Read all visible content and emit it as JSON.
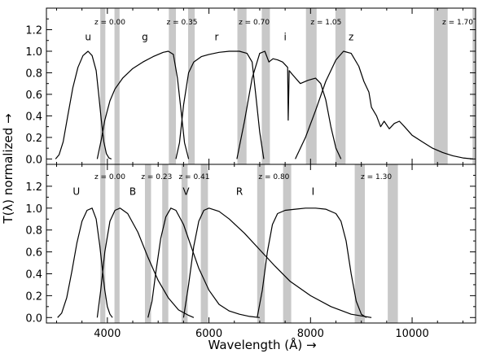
{
  "chart_data": {
    "type": "line",
    "xlabel": "Wavelength (Å) →",
    "ylabel": "T(λ) normalized →",
    "xlim": [
      2800,
      11250
    ],
    "x_ticks": [
      4000,
      6000,
      8000,
      10000
    ],
    "x_tick_labels": [
      "4000",
      "6000",
      "8000",
      "10000"
    ],
    "ylim": [
      -0.05,
      1.4
    ],
    "y_ticks": [
      0.0,
      0.2,
      0.4,
      0.6,
      0.8,
      1.0,
      1.2
    ],
    "y_tick_labels": [
      "0.0",
      "0.2",
      "0.4",
      "0.6",
      "0.8",
      "1.0",
      "1.2"
    ],
    "grid": false,
    "panels": [
      {
        "position": "top",
        "series": [
          {
            "name": "u",
            "label_at": [
              3620,
              1.1
            ],
            "x": [
              2980,
              3050,
              3130,
              3220,
              3320,
              3420,
              3520,
              3620,
              3700,
              3780,
              3830,
              3880,
              3930,
              3980,
              4030,
              4080
            ],
            "y": [
              0.0,
              0.04,
              0.16,
              0.4,
              0.66,
              0.85,
              0.96,
              1.0,
              0.96,
              0.82,
              0.6,
              0.36,
              0.16,
              0.05,
              0.01,
              0.0
            ]
          },
          {
            "name": "g",
            "label_at": [
              4740,
              1.1
            ],
            "x": [
              3800,
              3880,
              3950,
              4050,
              4150,
              4300,
              4500,
              4700,
              4900,
              5100,
              5200,
              5300,
              5380,
              5450,
              5520,
              5600
            ],
            "y": [
              0.0,
              0.18,
              0.36,
              0.54,
              0.65,
              0.75,
              0.84,
              0.9,
              0.95,
              0.99,
              1.0,
              0.97,
              0.75,
              0.45,
              0.15,
              0.0
            ]
          },
          {
            "name": "r",
            "label_at": [
              6150,
              1.1
            ],
            "x": [
              5350,
              5420,
              5500,
              5600,
              5700,
              5850,
              6000,
              6200,
              6400,
              6600,
              6750,
              6850,
              6920,
              7000,
              7080
            ],
            "y": [
              0.0,
              0.15,
              0.5,
              0.8,
              0.9,
              0.95,
              0.97,
              0.99,
              1.0,
              1.0,
              0.98,
              0.9,
              0.6,
              0.25,
              0.0
            ]
          },
          {
            "name": "i",
            "label_at": [
              7500,
              1.1
            ],
            "x": [
              6550,
              6700,
              6850,
              7000,
              7100,
              7180,
              7260,
              7350,
              7450,
              7550,
              7560,
              7580,
              7650,
              7800,
              7950,
              8100,
              8200,
              8300,
              8400,
              8500,
              8600
            ],
            "y": [
              0.0,
              0.35,
              0.75,
              0.98,
              1.0,
              0.9,
              0.93,
              0.92,
              0.9,
              0.85,
              0.36,
              0.82,
              0.78,
              0.7,
              0.73,
              0.75,
              0.7,
              0.55,
              0.3,
              0.1,
              0.0
            ]
          },
          {
            "name": "z",
            "label_at": [
              8800,
              1.1
            ],
            "x": [
              7700,
              7900,
              8100,
              8300,
              8500,
              8650,
              8800,
              8950,
              9050,
              9150,
              9200,
              9300,
              9380,
              9450,
              9550,
              9650,
              9750,
              9850,
              10000,
              10200,
              10400,
              10600,
              10800,
              11000,
              11200
            ],
            "y": [
              0.0,
              0.2,
              0.45,
              0.72,
              0.92,
              1.0,
              0.98,
              0.86,
              0.72,
              0.62,
              0.48,
              0.4,
              0.3,
              0.35,
              0.28,
              0.33,
              0.35,
              0.3,
              0.22,
              0.16,
              0.1,
              0.06,
              0.03,
              0.01,
              0.0
            ]
          }
        ],
        "bands": [
          {
            "z_label": "z = 0.00",
            "ranges": [
              [
                3860,
                3960
              ],
              [
                4140,
                4240
              ]
            ]
          },
          {
            "z_label": "z = 0.35",
            "ranges": [
              [
                5210,
                5350
              ],
              [
                5590,
                5720
              ]
            ]
          },
          {
            "z_label": "z = 0.70",
            "ranges": [
              [
                6560,
                6740
              ],
              [
                7040,
                7200
              ]
            ]
          },
          {
            "z_label": "z = 1.05",
            "ranges": [
              [
                7910,
                8120
              ],
              [
                8490,
                8690
              ]
            ]
          },
          {
            "z_label": "z = 1.70",
            "ranges": [
              [
                10430,
                10700
              ],
              [
                11190,
                11260
              ]
            ]
          }
        ]
      },
      {
        "position": "bottom",
        "series": [
          {
            "name": "U",
            "label_at": [
              3390,
              1.12
            ],
            "x": [
              3020,
              3100,
              3200,
              3300,
              3400,
              3500,
              3600,
              3700,
              3780,
              3850,
              3900,
              3950,
              4000,
              4050,
              4100
            ],
            "y": [
              0.0,
              0.04,
              0.18,
              0.42,
              0.68,
              0.88,
              0.98,
              1.0,
              0.9,
              0.66,
              0.45,
              0.25,
              0.1,
              0.03,
              0.0
            ]
          },
          {
            "name": "B",
            "label_at": [
              4500,
              1.12
            ],
            "x": [
              3800,
              3870,
              3950,
              4050,
              4150,
              4250,
              4400,
              4600,
              4800,
              5000,
              5200,
              5400,
              5600,
              5700
            ],
            "y": [
              0.0,
              0.25,
              0.6,
              0.88,
              0.98,
              1.0,
              0.95,
              0.78,
              0.55,
              0.34,
              0.18,
              0.07,
              0.02,
              0.0
            ]
          },
          {
            "name": "V",
            "label_at": [
              5550,
              1.12
            ],
            "x": [
              4800,
              4880,
              4950,
              5050,
              5150,
              5250,
              5350,
              5500,
              5650,
              5800,
              6000,
              6200,
              6400,
              6600,
              6800,
              7000
            ],
            "y": [
              0.0,
              0.15,
              0.4,
              0.72,
              0.92,
              1.0,
              0.98,
              0.85,
              0.65,
              0.45,
              0.25,
              0.12,
              0.06,
              0.03,
              0.01,
              0.0
            ]
          },
          {
            "name": "R",
            "label_at": [
              6600,
              1.12
            ],
            "x": [
              5500,
              5600,
              5700,
              5800,
              5900,
              6000,
              6200,
              6400,
              6700,
              7000,
              7300,
              7600,
              8000,
              8400,
              8800,
              9200
            ],
            "y": [
              0.0,
              0.3,
              0.65,
              0.88,
              0.98,
              1.0,
              0.97,
              0.9,
              0.77,
              0.62,
              0.47,
              0.33,
              0.2,
              0.1,
              0.03,
              0.0
            ]
          },
          {
            "name": "I",
            "label_at": [
              8050,
              1.12
            ],
            "x": [
              6950,
              7050,
              7150,
              7250,
              7350,
              7500,
              7700,
              7900,
              8100,
              8300,
              8500,
              8600,
              8700,
              8800,
              8900,
              9000,
              9100
            ],
            "y": [
              0.0,
              0.25,
              0.6,
              0.85,
              0.95,
              0.98,
              0.99,
              1.0,
              1.0,
              0.99,
              0.95,
              0.88,
              0.7,
              0.4,
              0.15,
              0.03,
              0.0
            ]
          }
        ],
        "bands": [
          {
            "z_label": "z = 0.00",
            "ranges": [
              [
                3860,
                3960
              ],
              [
                4140,
                4240
              ]
            ]
          },
          {
            "z_label": "z = 0.23",
            "ranges": [
              [
                4740,
                4860
              ],
              [
                5080,
                5200
              ]
            ]
          },
          {
            "z_label": "z = 0.41",
            "ranges": [
              [
                5460,
                5580
              ],
              [
                5840,
                5980
              ]
            ]
          },
          {
            "z_label": "z = 0.80",
            "ranges": [
              [
                6950,
                7100
              ],
              [
                7460,
                7620
              ]
            ]
          },
          {
            "z_label": "z = 1.30",
            "ranges": [
              [
                8870,
                9070
              ],
              [
                9520,
                9720
              ]
            ]
          }
        ]
      }
    ]
  }
}
